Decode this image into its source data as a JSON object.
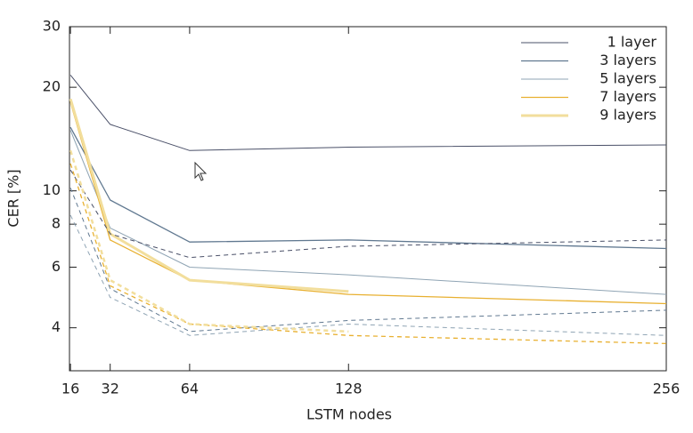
{
  "chart_data": {
    "type": "line",
    "xlabel": "LSTM nodes",
    "ylabel": "CER [%]",
    "x": [
      16,
      32,
      64,
      128,
      256
    ],
    "xlim": [
      15.6,
      256
    ],
    "xticks": [
      16,
      32,
      64,
      128,
      256
    ],
    "ylim": [
      3,
      30
    ],
    "yticks": [
      4,
      6,
      8,
      10,
      20,
      30
    ],
    "yscale": "log",
    "legend": "upper right",
    "series": [
      {
        "name": "1 layer",
        "color": "#4a5068",
        "width": 1,
        "values": [
          21.7,
          15.6,
          13.1,
          13.4,
          13.6
        ]
      },
      {
        "name": "3 layers",
        "color": "#607890",
        "width": 1.3,
        "values": [
          15.3,
          9.4,
          7.1,
          7.2,
          6.8
        ]
      },
      {
        "name": "5 layers",
        "color": "#8fa4b4",
        "width": 1,
        "values": [
          15.0,
          7.8,
          6.0,
          5.7,
          5.0
        ]
      },
      {
        "name": "7 layers",
        "color": "#e8b030",
        "width": 1.3,
        "values": [
          18.1,
          7.2,
          5.5,
          5.0,
          4.7
        ]
      },
      {
        "name": "9 layers",
        "color": "#f2de9c",
        "width": 3,
        "values": [
          18.5,
          7.5,
          5.5,
          5.1,
          null
        ]
      },
      {
        "color": "#4a5068",
        "width": 1,
        "dash": true,
        "values": [
          11.5,
          7.5,
          6.4,
          6.9,
          7.2
        ]
      },
      {
        "color": "#607890",
        "width": 1,
        "dash": true,
        "values": [
          10.2,
          5.2,
          3.9,
          4.2,
          4.5
        ]
      },
      {
        "color": "#8fa4b4",
        "width": 1,
        "dash": true,
        "values": [
          8.5,
          4.9,
          3.8,
          4.1,
          3.8
        ]
      },
      {
        "color": "#e8b030",
        "width": 1.3,
        "dash": true,
        "values": [
          12.0,
          5.3,
          4.1,
          3.8,
          3.6
        ]
      },
      {
        "color": "#f2de9c",
        "width": 2.5,
        "dash": true,
        "values": [
          13.1,
          5.5,
          4.1,
          3.9,
          null
        ]
      }
    ]
  }
}
